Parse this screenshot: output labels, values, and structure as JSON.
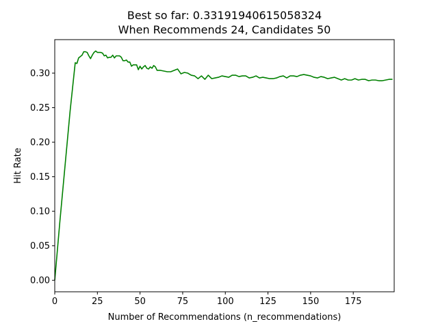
{
  "chart_data": {
    "type": "line",
    "title": "Best so far: 0.33191940615058324",
    "subtitle": "When Recommends 24, Candidates 50",
    "xlabel": "Number of Recommendations (n_recommendations)",
    "ylabel": "Hit Rate",
    "xlim": [
      0,
      199
    ],
    "ylim": [
      -0.0166,
      0.3485
    ],
    "x_ticks": [
      0,
      25,
      50,
      75,
      100,
      125,
      150,
      175
    ],
    "x_tick_labels": [
      "0",
      "25",
      "50",
      "75",
      "100",
      "125",
      "150",
      "175"
    ],
    "y_ticks": [
      0.0,
      0.05,
      0.1,
      0.15,
      0.2,
      0.25,
      0.3
    ],
    "y_tick_labels": [
      "0.00",
      "0.05",
      "0.10",
      "0.15",
      "0.20",
      "0.25",
      "0.30"
    ],
    "grid": false,
    "series": [
      {
        "color": "#008000",
        "x": [
          0,
          3,
          6,
          9,
          12,
          13,
          14,
          15,
          16,
          17,
          18,
          19,
          20,
          21,
          22,
          23,
          24,
          25,
          26,
          27,
          28,
          29,
          30,
          31,
          32,
          33,
          34,
          35,
          36,
          37,
          38,
          39,
          40,
          41,
          42,
          43,
          44,
          45,
          46,
          47,
          48,
          49,
          50,
          51,
          52,
          53,
          54,
          55,
          56,
          57,
          58,
          59,
          60,
          62,
          64,
          66,
          68,
          70,
          72,
          74,
          76,
          78,
          80,
          82,
          84,
          86,
          88,
          90,
          92,
          94,
          96,
          98,
          100,
          102,
          104,
          106,
          108,
          110,
          112,
          114,
          116,
          118,
          120,
          122,
          124,
          126,
          128,
          130,
          132,
          134,
          136,
          138,
          140,
          142,
          144,
          146,
          148,
          150,
          152,
          154,
          156,
          158,
          160,
          162,
          164,
          166,
          168,
          170,
          172,
          174,
          176,
          178,
          180,
          182,
          184,
          186,
          188,
          190,
          192,
          194,
          196,
          198
        ],
        "y": [
          0.0,
          0.085,
          0.165,
          0.245,
          0.315,
          0.314,
          0.322,
          0.324,
          0.326,
          0.331,
          0.331,
          0.33,
          0.325,
          0.321,
          0.326,
          0.33,
          0.332,
          0.33,
          0.33,
          0.33,
          0.329,
          0.325,
          0.326,
          0.322,
          0.323,
          0.323,
          0.326,
          0.322,
          0.325,
          0.325,
          0.325,
          0.323,
          0.318,
          0.318,
          0.319,
          0.316,
          0.316,
          0.31,
          0.312,
          0.312,
          0.312,
          0.305,
          0.31,
          0.306,
          0.309,
          0.311,
          0.307,
          0.306,
          0.309,
          0.307,
          0.311,
          0.309,
          0.304,
          0.304,
          0.303,
          0.302,
          0.302,
          0.304,
          0.306,
          0.299,
          0.301,
          0.3,
          0.297,
          0.296,
          0.292,
          0.296,
          0.291,
          0.297,
          0.292,
          0.293,
          0.294,
          0.296,
          0.295,
          0.294,
          0.297,
          0.297,
          0.295,
          0.296,
          0.296,
          0.293,
          0.294,
          0.296,
          0.293,
          0.294,
          0.293,
          0.292,
          0.292,
          0.293,
          0.295,
          0.296,
          0.293,
          0.296,
          0.296,
          0.295,
          0.297,
          0.298,
          0.297,
          0.296,
          0.294,
          0.293,
          0.295,
          0.294,
          0.292,
          0.293,
          0.294,
          0.292,
          0.29,
          0.292,
          0.29,
          0.29,
          0.292,
          0.29,
          0.291,
          0.291,
          0.289,
          0.29,
          0.29,
          0.289,
          0.289,
          0.29,
          0.291,
          0.291
        ]
      }
    ]
  }
}
